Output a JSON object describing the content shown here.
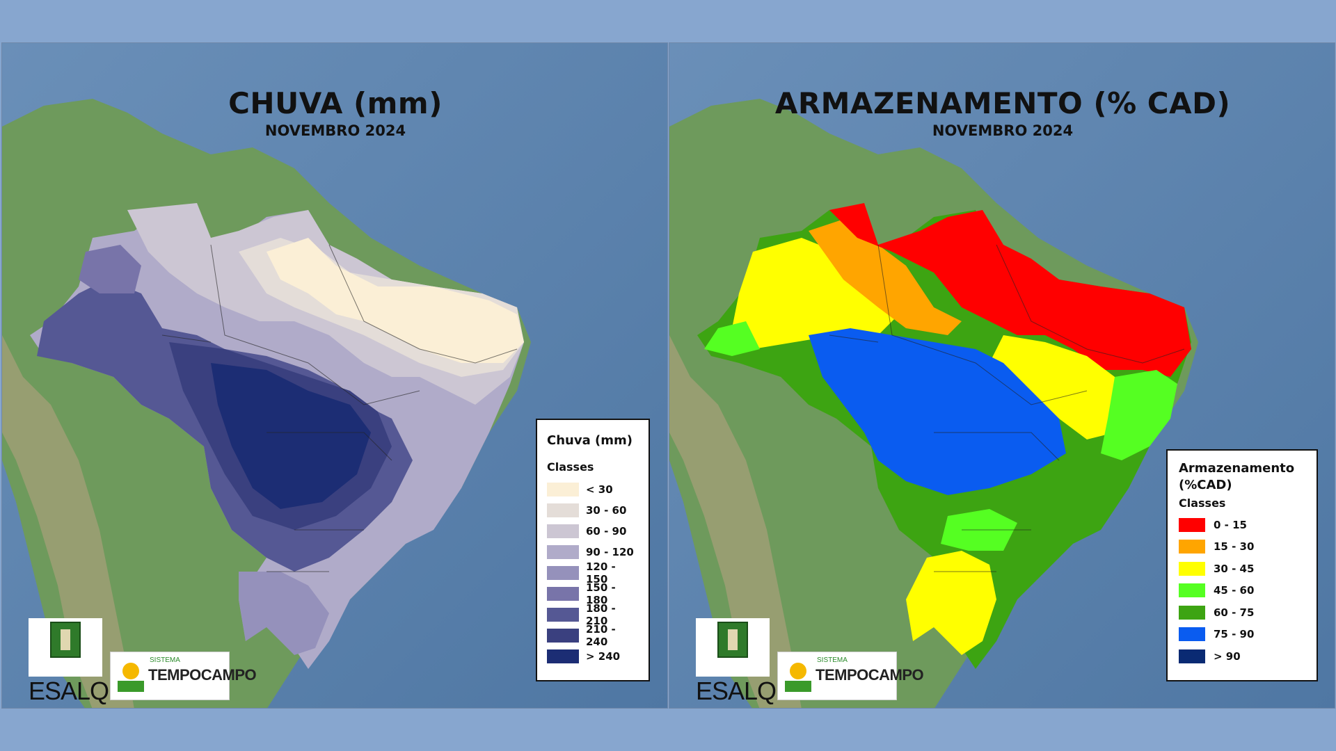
{
  "maps": [
    {
      "title": "CHUVA (mm)",
      "subtitle": "NOVEMBRO 2024",
      "legend": {
        "title": "Chuva (mm)",
        "subtitle": "Classes",
        "classes": [
          {
            "label": "< 30",
            "color": "#fbefd6"
          },
          {
            "label": "30 - 60",
            "color": "#e4ddd8"
          },
          {
            "label": "60 - 90",
            "color": "#ccc6d3"
          },
          {
            "label": "90 - 120",
            "color": "#b0abc9"
          },
          {
            "label": "120 - 150",
            "color": "#9591bb"
          },
          {
            "label": "150 - 180",
            "color": "#7874a9"
          },
          {
            "label": "180 - 210",
            "color": "#555894"
          },
          {
            "label": "210 - 240",
            "color": "#3a407f"
          },
          {
            "label": "> 240",
            "color": "#1c2d74"
          }
        ]
      }
    },
    {
      "title": "ARMAZENAMENTO (% CAD)",
      "subtitle": "NOVEMBRO 2024",
      "legend": {
        "title": "Armazenamento (%CAD)",
        "subtitle": "Classes",
        "classes": [
          {
            "label": "0 - 15",
            "color": "#ff0000"
          },
          {
            "label": "15 - 30",
            "color": "#ffa500"
          },
          {
            "label": "30 - 45",
            "color": "#ffff00"
          },
          {
            "label": "45 - 60",
            "color": "#55ff22"
          },
          {
            "label": "60 - 75",
            "color": "#3da412"
          },
          {
            "label": "75 - 90",
            "color": "#0a5cf0"
          },
          {
            "label": "> 90",
            "color": "#0a2a73"
          }
        ]
      }
    }
  ],
  "logos": {
    "esalq": "ESALQ",
    "sistema": "SISTEMA",
    "tempocampo": "TEMPOCAMPO"
  },
  "colors": {
    "page_background": "#87a6cf",
    "ocean": "#5f83ad",
    "land": "#6d9a58"
  }
}
